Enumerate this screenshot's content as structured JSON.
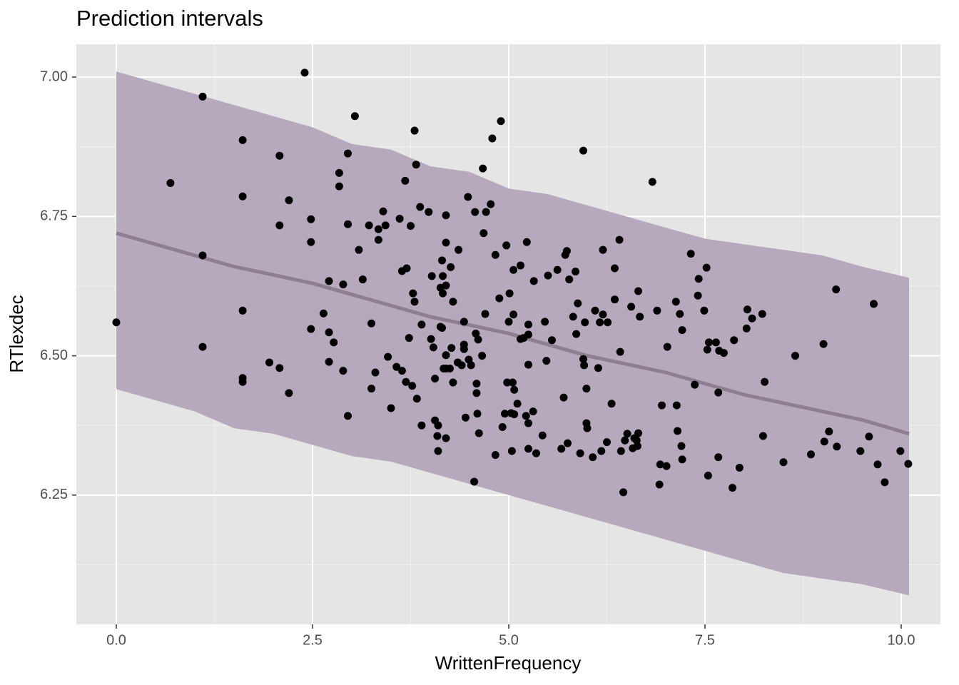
{
  "chart_data": {
    "type": "scatter",
    "title": "Prediction intervals",
    "x_label": "WrittenFrequency",
    "y_label": "RTlexdec",
    "xlim": [
      -0.509,
      10.5
    ],
    "ylim": [
      6.018,
      7.059
    ],
    "xticks": [
      {
        "value": 0,
        "label": "0.0"
      },
      2.5,
      {
        "value": 5,
        "label": "5.0"
      },
      7.5,
      {
        "value": 10,
        "label": "10.0"
      }
    ],
    "yticks": [
      6.25,
      {
        "value": 6.5,
        "label": "6.50"
      },
      6.75,
      {
        "value": 7,
        "label": "7.00"
      }
    ],
    "x_minor_grid": [
      1.25,
      3.75,
      6.25,
      8.75
    ],
    "y_minor_grid": [
      6.125,
      6.375,
      6.625,
      6.875
    ],
    "grid": true,
    "interval": {
      "fill": "#b7a9bd",
      "line_color": "#8e7e92",
      "x": [
        0,
        0.5,
        1,
        1.5,
        2,
        2.5,
        3,
        3.5,
        4,
        4.5,
        5,
        5.5,
        6,
        6.5,
        7,
        7.5,
        8,
        8.5,
        9,
        9.5,
        10.1
      ],
      "upper": [
        7.01,
        6.99,
        6.97,
        6.95,
        6.93,
        6.91,
        6.88,
        6.87,
        6.84,
        6.83,
        6.8,
        6.79,
        6.77,
        6.75,
        6.73,
        6.71,
        6.7,
        6.69,
        6.68,
        6.66,
        6.64
      ],
      "lower": [
        6.44,
        6.42,
        6.4,
        6.37,
        6.36,
        6.34,
        6.32,
        6.31,
        6.29,
        6.27,
        6.25,
        6.23,
        6.21,
        6.19,
        6.17,
        6.15,
        6.13,
        6.11,
        6.1,
        6.09,
        6.07
      ],
      "mean": [
        6.72,
        6.7,
        6.68,
        6.66,
        6.645,
        6.63,
        6.61,
        6.59,
        6.57,
        6.555,
        6.54,
        6.52,
        6.5,
        6.485,
        6.47,
        6.45,
        6.43,
        6.415,
        6.4,
        6.385,
        6.36
      ]
    },
    "points": {
      "color": "#000000",
      "x": [
        0,
        0.69,
        1.1,
        1.1,
        1.1,
        1.61,
        1.61,
        1.61,
        1.61,
        1.61,
        1.95,
        2.08,
        2.08,
        2.08,
        2.2,
        2.2,
        2.4,
        2.48,
        2.48,
        2.48,
        2.64,
        2.71,
        2.71,
        2.71,
        2.77,
        2.84,
        2.84,
        2.89,
        2.89,
        2.95,
        2.95,
        2.95,
        3.04,
        3.09,
        3.14,
        3.22,
        3.25,
        3.25,
        3.3,
        3.34,
        3.34,
        3.4,
        3.43,
        3.46,
        3.5,
        3.57,
        3.61,
        3.64,
        3.64,
        3.68,
        3.69,
        3.7,
        3.73,
        3.75,
        3.77,
        3.78,
        3.8,
        3.8,
        3.82,
        3.83,
        3.87,
        3.89,
        3.89,
        3.98,
        4.01,
        4.02,
        4.04,
        4.06,
        4.06,
        4.09,
        4.1,
        4.1,
        4.13,
        4.13,
        4.15,
        4.15,
        4.16,
        4.16,
        4.17,
        4.2,
        4.2,
        4.2,
        4.2,
        4.2,
        4.2,
        4.25,
        4.26,
        4.27,
        4.29,
        4.29,
        4.35,
        4.36,
        4.4,
        4.43,
        4.43,
        4.43,
        4.45,
        4.48,
        4.49,
        4.52,
        4.56,
        4.57,
        4.58,
        4.59,
        4.59,
        4.6,
        4.61,
        4.62,
        4.66,
        4.67,
        4.68,
        4.7,
        4.71,
        4.77,
        4.79,
        4.83,
        4.83,
        4.88,
        4.9,
        4.92,
        4.95,
        4.97,
        4.98,
        5,
        5.01,
        5.03,
        5.04,
        5.05,
        5.06,
        5.06,
        5.07,
        5.07,
        5.11,
        5.15,
        5.15,
        5.19,
        5.22,
        5.23,
        5.25,
        5.25,
        5.25,
        5.25,
        5.25,
        5.31,
        5.32,
        5.35,
        5.43,
        5.46,
        5.48,
        5.5,
        5.55,
        5.62,
        5.67,
        5.7,
        5.72,
        5.74,
        5.75,
        5.77,
        5.82,
        5.85,
        5.86,
        5.88,
        5.91,
        5.95,
        5.95,
        5.96,
        5.97,
        5.99,
        5.99,
        6,
        6.07,
        6.1,
        6.14,
        6.16,
        6.18,
        6.2,
        6.2,
        6.25,
        6.26,
        6.31,
        6.35,
        6.35,
        6.41,
        6.42,
        6.43,
        6.46,
        6.48,
        6.51,
        6.56,
        6.58,
        6.6,
        6.63,
        6.64,
        6.65,
        6.65,
        6.67,
        6.83,
        6.89,
        6.92,
        6.93,
        6.95,
        7.01,
        7.02,
        7.13,
        7.14,
        7.15,
        7.18,
        7.2,
        7.21,
        7.21,
        7.32,
        7.37,
        7.41,
        7.42,
        7.49,
        7.52,
        7.53,
        7.55,
        7.54,
        7.64,
        7.67,
        7.67,
        7.68,
        7.74,
        7.85,
        7.87,
        7.94,
        8.03,
        8.04,
        8.1,
        8.23,
        8.24,
        8.26,
        8.5,
        8.65,
        8.85,
        9.02,
        9.01,
        9.08,
        9.18,
        9.17,
        9.48,
        9.59,
        9.65,
        9.7,
        9.79,
        9.99,
        10.09
      ],
      "values": [
        6.56,
        6.81,
        6.965,
        6.68,
        6.516,
        6.887,
        6.786,
        6.581,
        6.46,
        6.453,
        6.488,
        6.859,
        6.734,
        6.478,
        6.779,
        6.433,
        7.008,
        6.745,
        6.704,
        6.548,
        6.576,
        6.634,
        6.542,
        6.489,
        6.524,
        6.828,
        6.804,
        6.628,
        6.473,
        6.863,
        6.736,
        6.392,
        6.93,
        6.69,
        6.637,
        6.734,
        6.558,
        6.441,
        6.47,
        6.727,
        6.708,
        6.759,
        6.734,
        6.498,
        6.406,
        6.48,
        6.746,
        6.652,
        6.473,
        6.814,
        6.453,
        6.657,
        6.532,
        6.733,
        6.446,
        6.612,
        6.904,
        6.597,
        6.843,
        6.423,
        6.767,
        6.556,
        6.375,
        6.758,
        6.53,
        6.643,
        6.515,
        6.459,
        6.384,
        6.356,
        6.375,
        6.329,
        6.622,
        6.552,
        6.55,
        6.671,
        6.643,
        6.612,
        6.477,
        6.703,
        6.626,
        6.501,
        6.477,
        6.352,
        6.752,
        6.477,
        6.659,
        6.514,
        6.597,
        6.452,
        6.488,
        6.69,
        6.483,
        6.561,
        6.52,
        6.512,
        6.389,
        6.785,
        6.493,
        6.483,
        6.274,
        6.758,
        6.54,
        6.45,
        6.433,
        6.396,
        6.529,
        6.361,
        6.5,
        6.836,
        6.72,
        6.575,
        6.758,
        6.772,
        6.89,
        6.681,
        6.322,
        6.603,
        6.921,
        6.372,
        6.396,
        6.698,
        6.452,
        6.561,
        6.612,
        6.397,
        6.329,
        6.452,
        6.654,
        6.574,
        6.395,
        6.439,
        6.414,
        6.53,
        6.662,
        6.532,
        6.392,
        6.704,
        6.556,
        6.538,
        6.484,
        6.379,
        6.333,
        6.4,
        6.634,
        6.325,
        6.357,
        6.561,
        6.491,
        6.644,
        6.528,
        6.654,
        6.333,
        6.425,
        6.681,
        6.688,
        6.343,
        6.637,
        6.57,
        6.651,
        6.539,
        6.594,
        6.325,
        6.868,
        6.494,
        6.483,
        6.56,
        6.441,
        6.379,
        6.37,
        6.318,
        6.581,
        6.478,
        6.56,
        6.329,
        6.69,
        6.574,
        6.345,
        6.56,
        6.414,
        6.601,
        6.657,
        6.708,
        6.507,
        6.329,
        6.255,
        6.348,
        6.36,
        6.588,
        6.334,
        6.352,
        6.348,
        6.338,
        6.361,
        6.616,
        6.57,
        6.812,
        6.581,
        6.269,
        6.305,
        6.411,
        6.302,
        6.516,
        6.597,
        6.411,
        6.365,
        6.575,
        6.338,
        6.546,
        6.314,
        6.683,
        6.448,
        6.608,
        6.638,
        6.581,
        6.658,
        6.511,
        6.524,
        6.285,
        6.524,
        6.434,
        6.318,
        6.509,
        6.505,
        6.263,
        6.528,
        6.299,
        6.549,
        6.583,
        6.567,
        6.575,
        6.356,
        6.453,
        6.309,
        6.5,
        6.323,
        6.346,
        6.521,
        6.364,
        6.337,
        6.619,
        6.329,
        6.355,
        6.593,
        6.305,
        6.273,
        6.329,
        6.306
      ]
    }
  }
}
